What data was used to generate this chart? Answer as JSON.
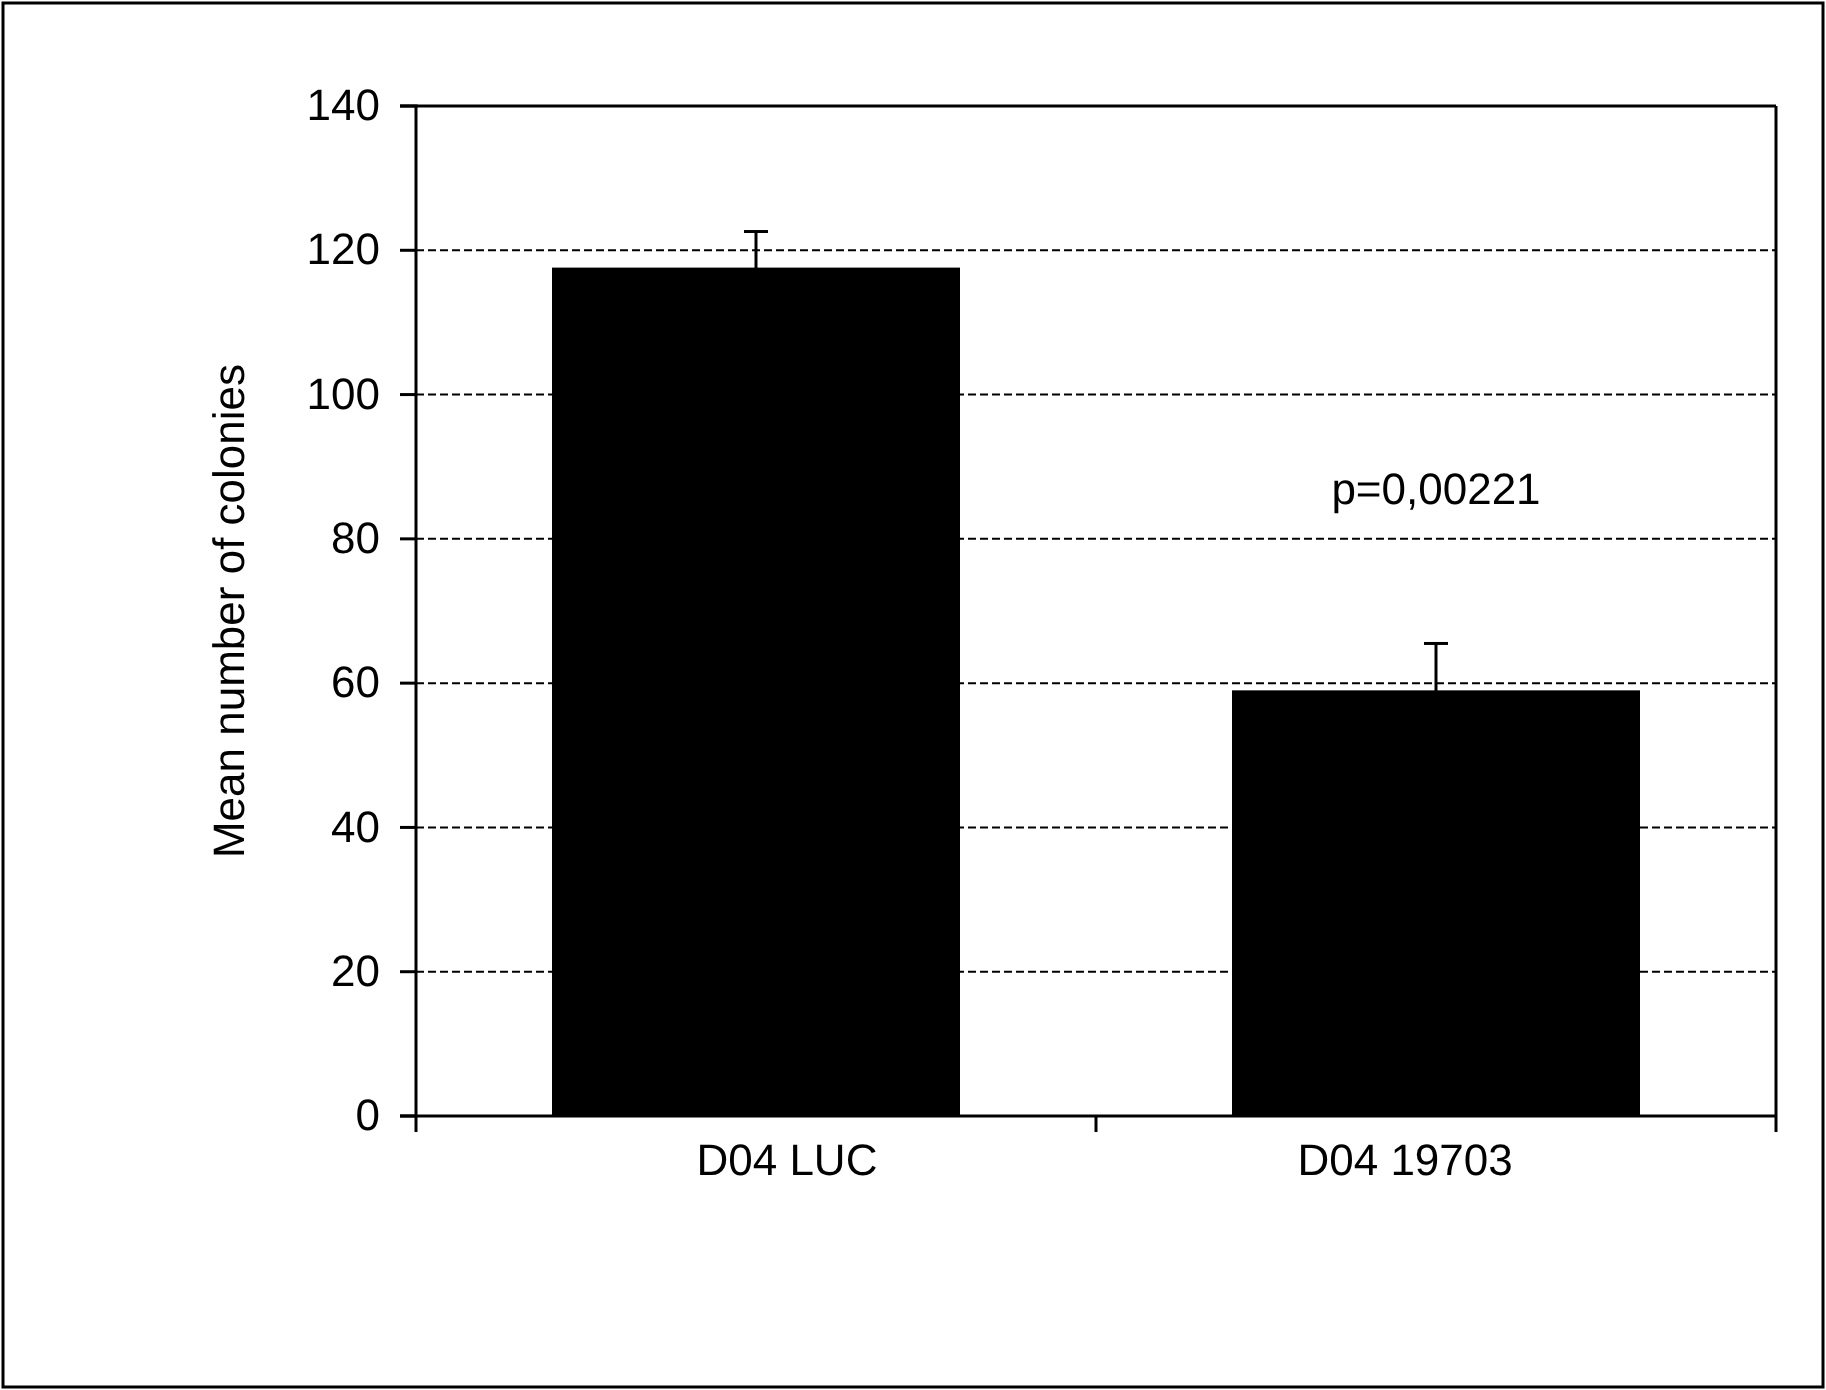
{
  "chart_data": {
    "type": "bar",
    "ylabel": "Mean number of colonies",
    "categories": [
      "D04 LUC",
      "D04 19703"
    ],
    "values": [
      117.6,
      59
    ],
    "errors": [
      5,
      6.5
    ],
    "color": "#000000",
    "ylim": [
      0,
      140
    ],
    "yticks": [
      0,
      20,
      40,
      60,
      80,
      100,
      120,
      140
    ],
    "grid": "y",
    "annotations": [
      "p=0,00221"
    ]
  }
}
